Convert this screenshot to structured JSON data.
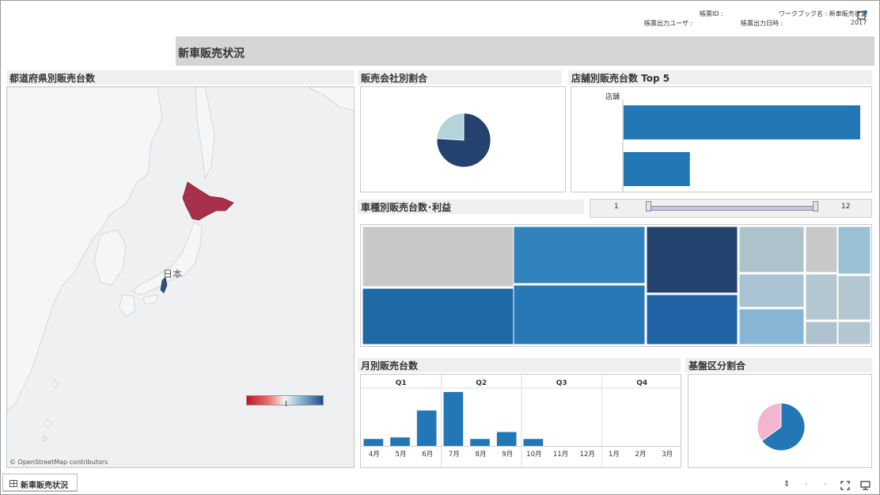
{
  "header": {
    "report_id_label": "帳票ID :",
    "workbook_label": "ワークブック名 : 新車販売状況",
    "output_user_label": "帳票出力ユーザ :",
    "output_datetime_label": "帳票出力日時 :",
    "output_datetime_value": "2017"
  },
  "dashboard_title": "新車販売状況",
  "map_panel": {
    "title": "都道府県別販売台数",
    "place_label": "日本",
    "credit": "© OpenStreetMap contributors",
    "highlight_colors": {
      "hokkaido": "#a8304a",
      "chubu": "#31507c"
    }
  },
  "pie_company": {
    "title": "販売会社別割合",
    "chart_data": {
      "type": "pie",
      "slices": [
        {
          "value": 76,
          "color": "#23436e"
        },
        {
          "value": 24,
          "color": "#b4d4dc"
        }
      ]
    }
  },
  "store_top5": {
    "title": "店舗別販売台数 Top 5",
    "axis_label": "店舗",
    "chart_data": {
      "type": "bar",
      "orientation": "horizontal",
      "values": [
        100,
        28
      ],
      "color": "#2277b4"
    }
  },
  "treemap": {
    "title": "車種別販売台数･利益",
    "chart_data": {
      "type": "heatmap",
      "cells": [
        {
          "group": 0,
          "row": 0,
          "color": "#c8c8c8"
        },
        {
          "group": 0,
          "row": 1,
          "color": "#1f6aa5"
        },
        {
          "group": 1,
          "row": 0,
          "color": "#3282bd"
        },
        {
          "group": 1,
          "row": 1,
          "color": "#2778b5"
        },
        {
          "group": 2,
          "row": 0,
          "color": "#23436e"
        },
        {
          "group": 2,
          "row": 1,
          "color": "#1f63a4"
        },
        {
          "group": 3,
          "row": 0,
          "color": "#aec2cc"
        },
        {
          "group": 3,
          "row": 1,
          "color": "#a9c3d3"
        },
        {
          "group": 3,
          "row": 2,
          "color": "#87b6d4"
        },
        {
          "group": 4,
          "row": 0,
          "color": "#c8c8c8"
        },
        {
          "group": 4,
          "row": 1,
          "color": "#b4c6d0"
        },
        {
          "group": 4,
          "row": 2,
          "color": "#adc2ce"
        },
        {
          "group": 5,
          "row": 0,
          "color": "#9ac0d6"
        },
        {
          "group": 5,
          "row": 1,
          "color": "#b4c6d0"
        },
        {
          "group": 5,
          "row": 2,
          "color": "#b4c6d0"
        }
      ]
    }
  },
  "month_slider": {
    "min": "1",
    "max": "12"
  },
  "monthly_sales": {
    "title": "月別販売台数",
    "chart_data": {
      "type": "bar",
      "quarters": [
        "Q1",
        "Q2",
        "Q3",
        "Q4"
      ],
      "categories": [
        "4月",
        "5月",
        "6月",
        "7月",
        "8月",
        "9月",
        "10月",
        "11月",
        "12月",
        "1月",
        "2月",
        "3月"
      ],
      "values": [
        9,
        11,
        46,
        70,
        9,
        18,
        9,
        0,
        0,
        0,
        0,
        0
      ],
      "ylim": [
        0,
        72
      ],
      "color": "#2277b4"
    }
  },
  "pie_base": {
    "title": "基盤区分割合",
    "chart_data": {
      "type": "pie",
      "slices": [
        {
          "value": 65,
          "color": "#2277b4"
        },
        {
          "value": 35,
          "color": "#f2b6d0"
        }
      ]
    }
  },
  "tabs": [
    {
      "label": "新車販売状況"
    }
  ]
}
